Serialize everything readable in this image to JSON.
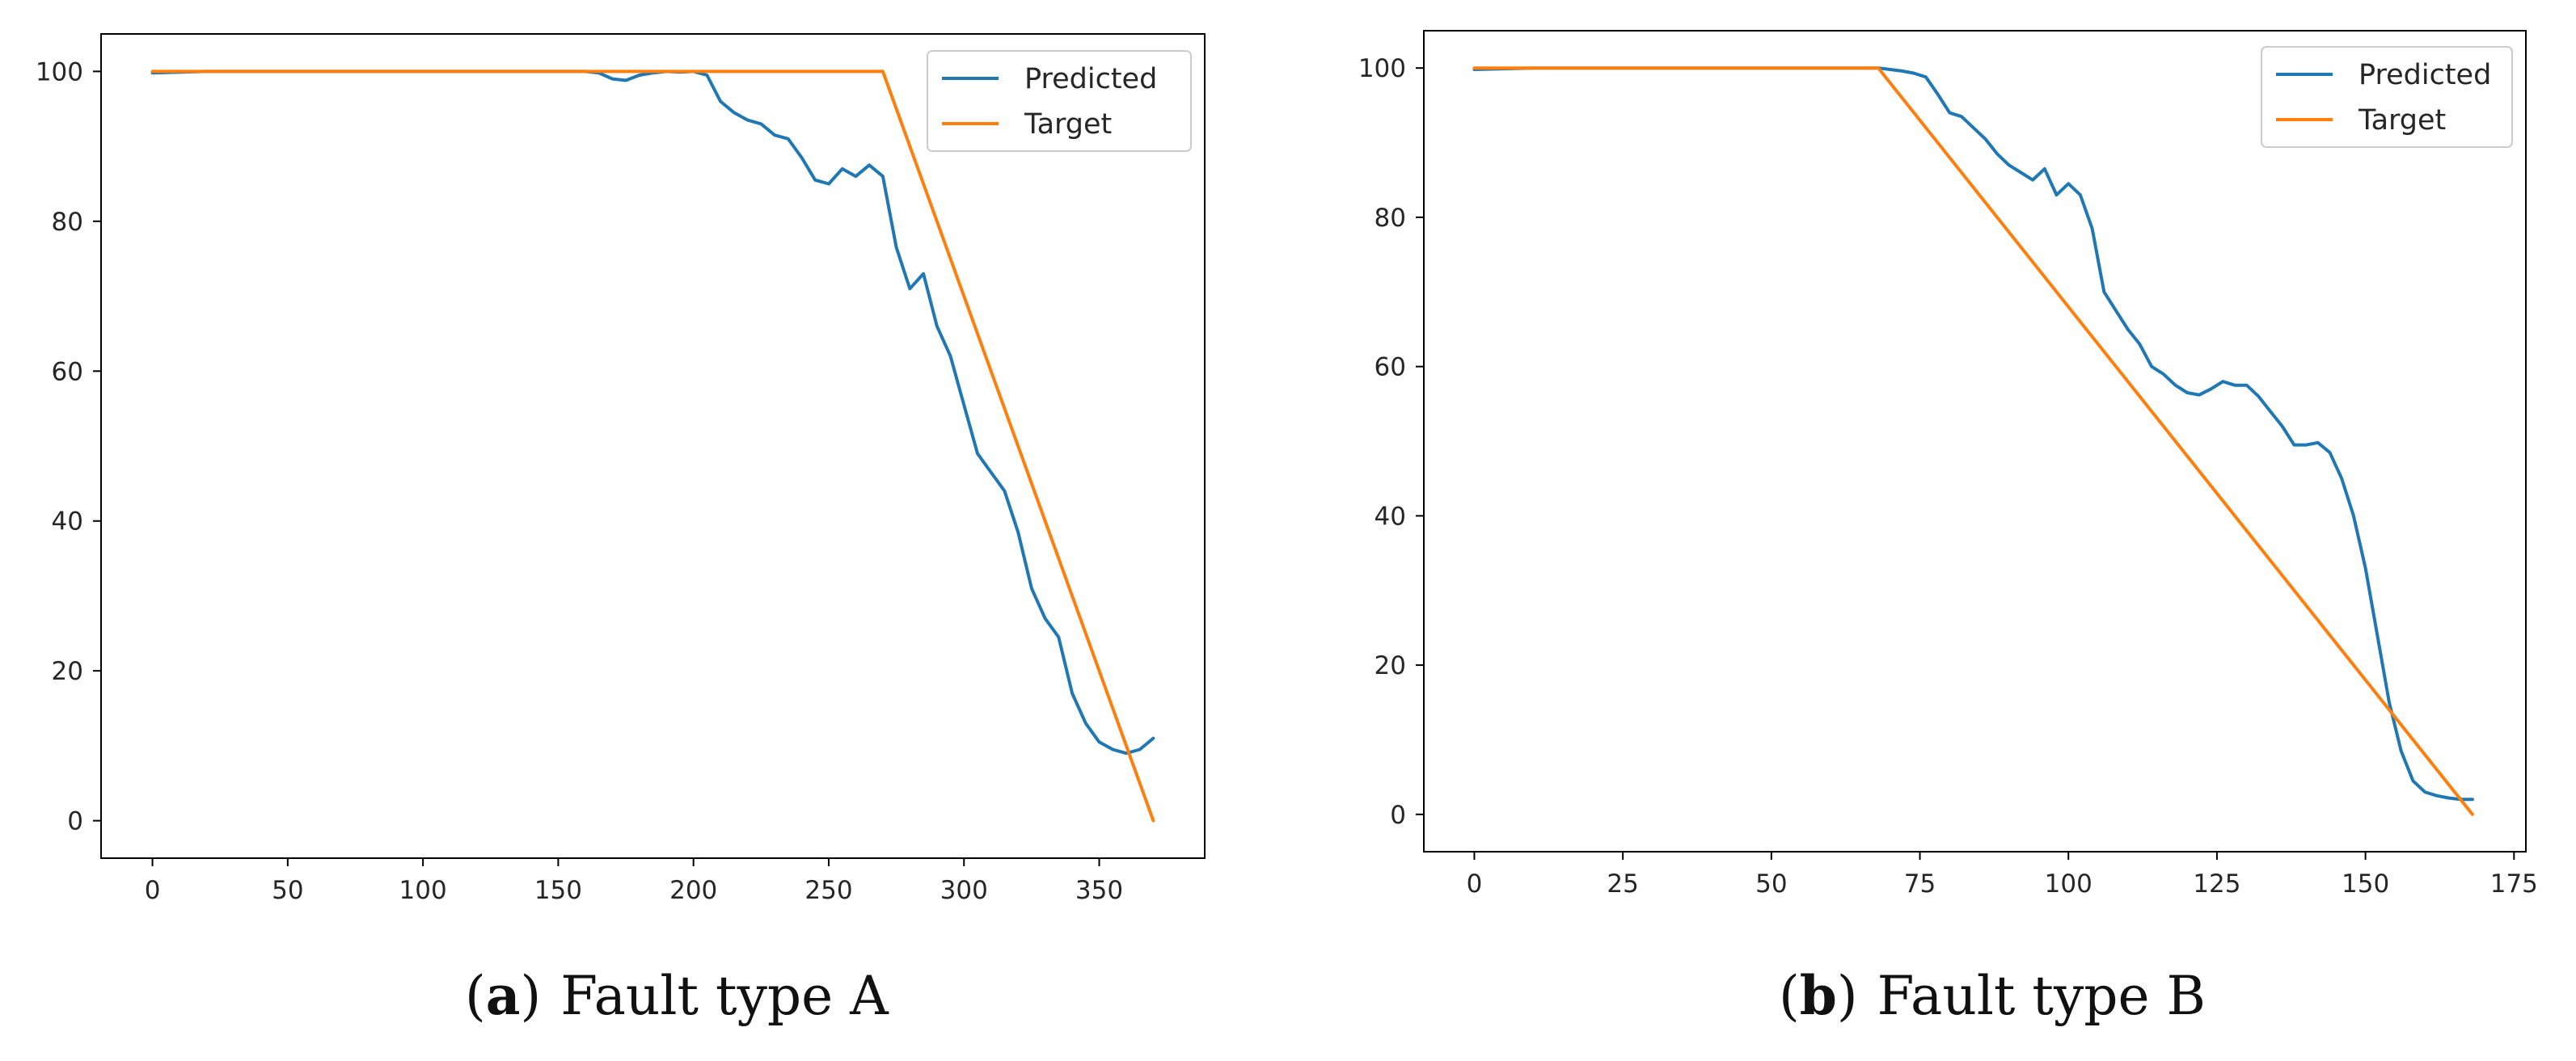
{
  "chart_data": [
    {
      "type": "line",
      "caption": {
        "letter": "a",
        "text": "Fault type A"
      },
      "xlim": [
        -19,
        389
      ],
      "ylim": [
        -5,
        105
      ],
      "xticks": [
        0,
        50,
        100,
        150,
        200,
        250,
        300,
        350
      ],
      "yticks": [
        0,
        20,
        40,
        60,
        80,
        100
      ],
      "legend_position": "top-right",
      "series": [
        {
          "name": "Predicted",
          "color": "#1f77b4",
          "x": [
            0,
            20,
            40,
            60,
            80,
            100,
            120,
            140,
            160,
            165,
            170,
            175,
            180,
            185,
            190,
            195,
            200,
            205,
            210,
            215,
            220,
            225,
            230,
            235,
            240,
            245,
            250,
            255,
            260,
            265,
            270,
            275,
            280,
            285,
            290,
            295,
            300,
            305,
            310,
            315,
            320,
            325,
            330,
            335,
            340,
            345,
            350,
            355,
            360,
            365,
            370
          ],
          "y": [
            99.8,
            100,
            100,
            100,
            100,
            100,
            100,
            100,
            100,
            99.8,
            99.0,
            98.8,
            99.5,
            99.8,
            100,
            99.9,
            100,
            99.5,
            96.0,
            94.5,
            93.5,
            93.0,
            91.5,
            91.0,
            88.5,
            85.5,
            85.0,
            87.0,
            86.0,
            87.5,
            86.0,
            76.5,
            71.0,
            73.0,
            66.0,
            62.0,
            55.5,
            49.0,
            46.5,
            44.0,
            38.5,
            31.0,
            27.0,
            24.5,
            17.0,
            13.0,
            10.5,
            9.5,
            9.0,
            9.5,
            11.0
          ]
        },
        {
          "name": "Target",
          "color": "#ff7f0e",
          "x": [
            0,
            270,
            370
          ],
          "y": [
            100,
            100,
            0
          ]
        }
      ]
    },
    {
      "type": "line",
      "caption": {
        "letter": "b",
        "text": "Fault type B"
      },
      "xlim": [
        -8.5,
        177
      ],
      "ylim": [
        -5,
        105
      ],
      "xticks": [
        0,
        25,
        50,
        75,
        100,
        125,
        150,
        175
      ],
      "yticks": [
        0,
        20,
        40,
        60,
        80,
        100
      ],
      "legend_position": "top-right",
      "series": [
        {
          "name": "Predicted",
          "color": "#1f77b4",
          "x": [
            0,
            10,
            20,
            30,
            40,
            50,
            60,
            68,
            70,
            72,
            74,
            76,
            78,
            80,
            82,
            84,
            86,
            88,
            90,
            92,
            94,
            96,
            98,
            100,
            102,
            104,
            106,
            108,
            110,
            112,
            114,
            116,
            118,
            120,
            122,
            124,
            126,
            128,
            130,
            132,
            134,
            136,
            138,
            140,
            142,
            144,
            146,
            148,
            150,
            152,
            154,
            156,
            158,
            160,
            162,
            164,
            166,
            168
          ],
          "y": [
            99.8,
            100,
            100,
            100,
            100,
            100,
            100,
            100,
            99.8,
            99.6,
            99.3,
            98.8,
            96.5,
            94.0,
            93.5,
            92.0,
            90.5,
            88.5,
            87.0,
            86.0,
            85.0,
            86.5,
            83.0,
            84.5,
            83.0,
            78.5,
            70.0,
            67.5,
            65.0,
            63.0,
            60.0,
            59.0,
            57.5,
            56.5,
            56.2,
            57.0,
            58.0,
            57.5,
            57.5,
            56.0,
            54.0,
            52.0,
            49.5,
            49.5,
            49.8,
            48.5,
            45.0,
            40.0,
            33.0,
            24.0,
            15.0,
            8.5,
            4.5,
            3.0,
            2.5,
            2.2,
            2.0,
            2.0
          ]
        },
        {
          "name": "Target",
          "color": "#ff7f0e",
          "x": [
            0,
            68,
            168
          ],
          "y": [
            100,
            100,
            0
          ]
        }
      ]
    }
  ]
}
